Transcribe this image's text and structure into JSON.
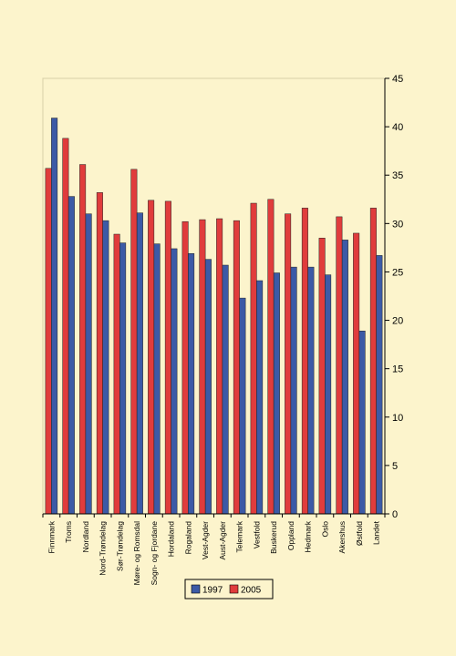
{
  "chart_data": {
    "type": "bar",
    "categories": [
      "Finnmark",
      "Troms",
      "Nordland",
      "Nord-Trøndelag",
      "Sør-Trøndelag",
      "Møre- og Romsdal",
      "Sogn- og Fjordane",
      "Hordaland",
      "Rogaland",
      "Vest-Agder",
      "Aust-Agder",
      "Telemark",
      "Vestfold",
      "Buskerud",
      "Oppland",
      "Hedmark",
      "Oslo",
      "Akershus",
      "Østfold",
      "Landet"
    ],
    "series": [
      {
        "name": "1997",
        "color": "#3c5aa6",
        "values": [
          40.9,
          32.8,
          31.0,
          30.3,
          28.0,
          31.1,
          27.9,
          27.4,
          26.9,
          26.3,
          25.7,
          22.3,
          24.1,
          24.9,
          25.5,
          25.5,
          24.7,
          28.3,
          18.9,
          26.7
        ]
      },
      {
        "name": "2005",
        "color": "#e03c3c",
        "values": [
          35.7,
          38.8,
          36.1,
          33.2,
          28.9,
          35.6,
          32.4,
          32.3,
          30.2,
          30.4,
          30.5,
          30.3,
          32.1,
          32.5,
          31.0,
          31.6,
          28.5,
          30.7,
          29.0,
          31.6
        ]
      }
    ],
    "ylim": [
      0,
      45
    ],
    "yticks": [
      "0",
      "5",
      "10",
      "15",
      "20",
      "25",
      "30",
      "35",
      "40",
      "45"
    ],
    "y_axis_side": "right",
    "grid": false,
    "legend": "bottom"
  }
}
